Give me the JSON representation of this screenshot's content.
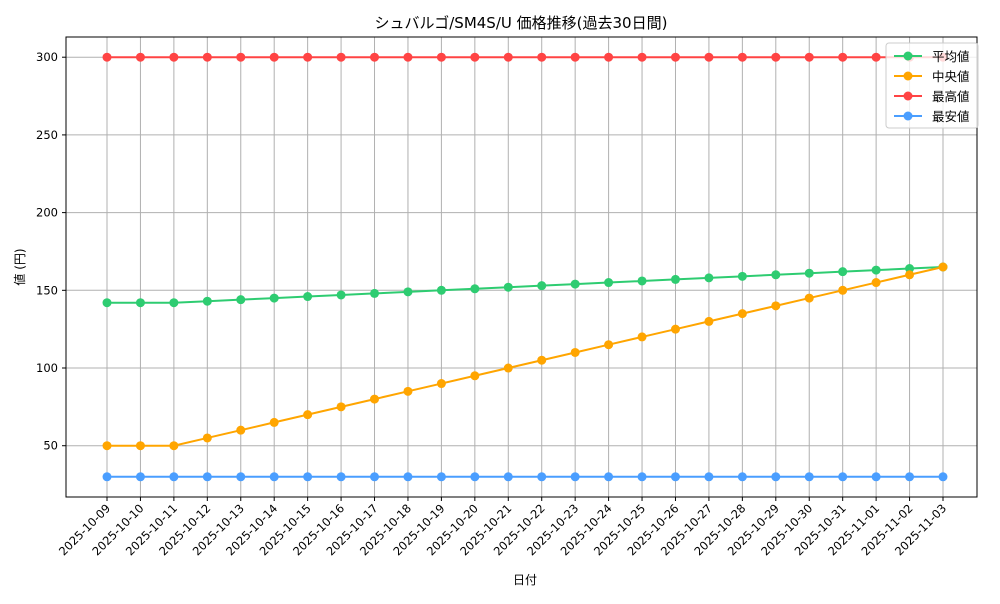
{
  "chart_data": {
    "type": "line",
    "title": "シュバルゴ/SM4S/U 価格推移(過去30日間)",
    "xlabel": "日付",
    "ylabel": "値 (円)",
    "x": [
      "2025-10-09",
      "2025-10-10",
      "2025-10-11",
      "2025-10-12",
      "2025-10-13",
      "2025-10-14",
      "2025-10-15",
      "2025-10-16",
      "2025-10-17",
      "2025-10-18",
      "2025-10-19",
      "2025-10-20",
      "2025-10-21",
      "2025-10-22",
      "2025-10-23",
      "2025-10-24",
      "2025-10-25",
      "2025-10-26",
      "2025-10-27",
      "2025-10-28",
      "2025-10-29",
      "2025-10-30",
      "2025-10-31",
      "2025-11-01",
      "2025-11-02",
      "2025-11-03"
    ],
    "ylim": [
      17,
      313
    ],
    "yticks": [
      50,
      100,
      150,
      200,
      250,
      300
    ],
    "grid": true,
    "legend_position": "top-right",
    "series": [
      {
        "name": "平均値",
        "color": "#2ecc71",
        "values": [
          142,
          142,
          142,
          143,
          144,
          145,
          146,
          147,
          148,
          149,
          150,
          151,
          152,
          153,
          154,
          155,
          156,
          157,
          158,
          159,
          160,
          161,
          162,
          163,
          164,
          165
        ]
      },
      {
        "name": "中央値",
        "color": "#ffa500",
        "values": [
          50,
          50,
          50,
          55,
          60,
          65,
          70,
          75,
          80,
          85,
          90,
          95,
          100,
          105,
          110,
          115,
          120,
          125,
          130,
          135,
          140,
          145,
          150,
          155,
          160,
          165
        ]
      },
      {
        "name": "最高値",
        "color": "#ff4444",
        "values": [
          300,
          300,
          300,
          300,
          300,
          300,
          300,
          300,
          300,
          300,
          300,
          300,
          300,
          300,
          300,
          300,
          300,
          300,
          300,
          300,
          300,
          300,
          300,
          300,
          300,
          300
        ]
      },
      {
        "name": "最安値",
        "color": "#4a9eff",
        "values": [
          30,
          30,
          30,
          30,
          30,
          30,
          30,
          30,
          30,
          30,
          30,
          30,
          30,
          30,
          30,
          30,
          30,
          30,
          30,
          30,
          30,
          30,
          30,
          30,
          30,
          30
        ]
      }
    ]
  }
}
